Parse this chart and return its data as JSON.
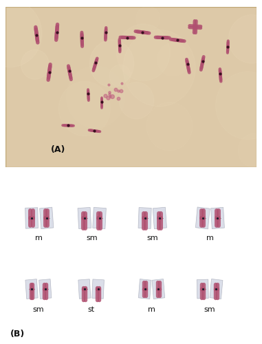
{
  "figure_width": 3.81,
  "figure_height": 5.0,
  "dpi": 100,
  "background_color": "#ffffff",
  "panel_A_label": "(A)",
  "panel_B_label": "(B)",
  "row1_labels": [
    "m",
    "sm",
    "sm",
    "m"
  ],
  "row2_labels": [
    "sm",
    "st",
    "m",
    "sm"
  ],
  "label_fontsize": 8,
  "panel_label_fontsize": 9,
  "top_bg_color": "#ddc9a8",
  "bottom_bg_color": "#f0eff0",
  "chromosome_color": "#b05070",
  "centromere_color": "#1a1a2a",
  "line_color": "#888888",
  "cut_paper_color": "#d8dce8",
  "cut_paper_edge": "#b0b4c0"
}
